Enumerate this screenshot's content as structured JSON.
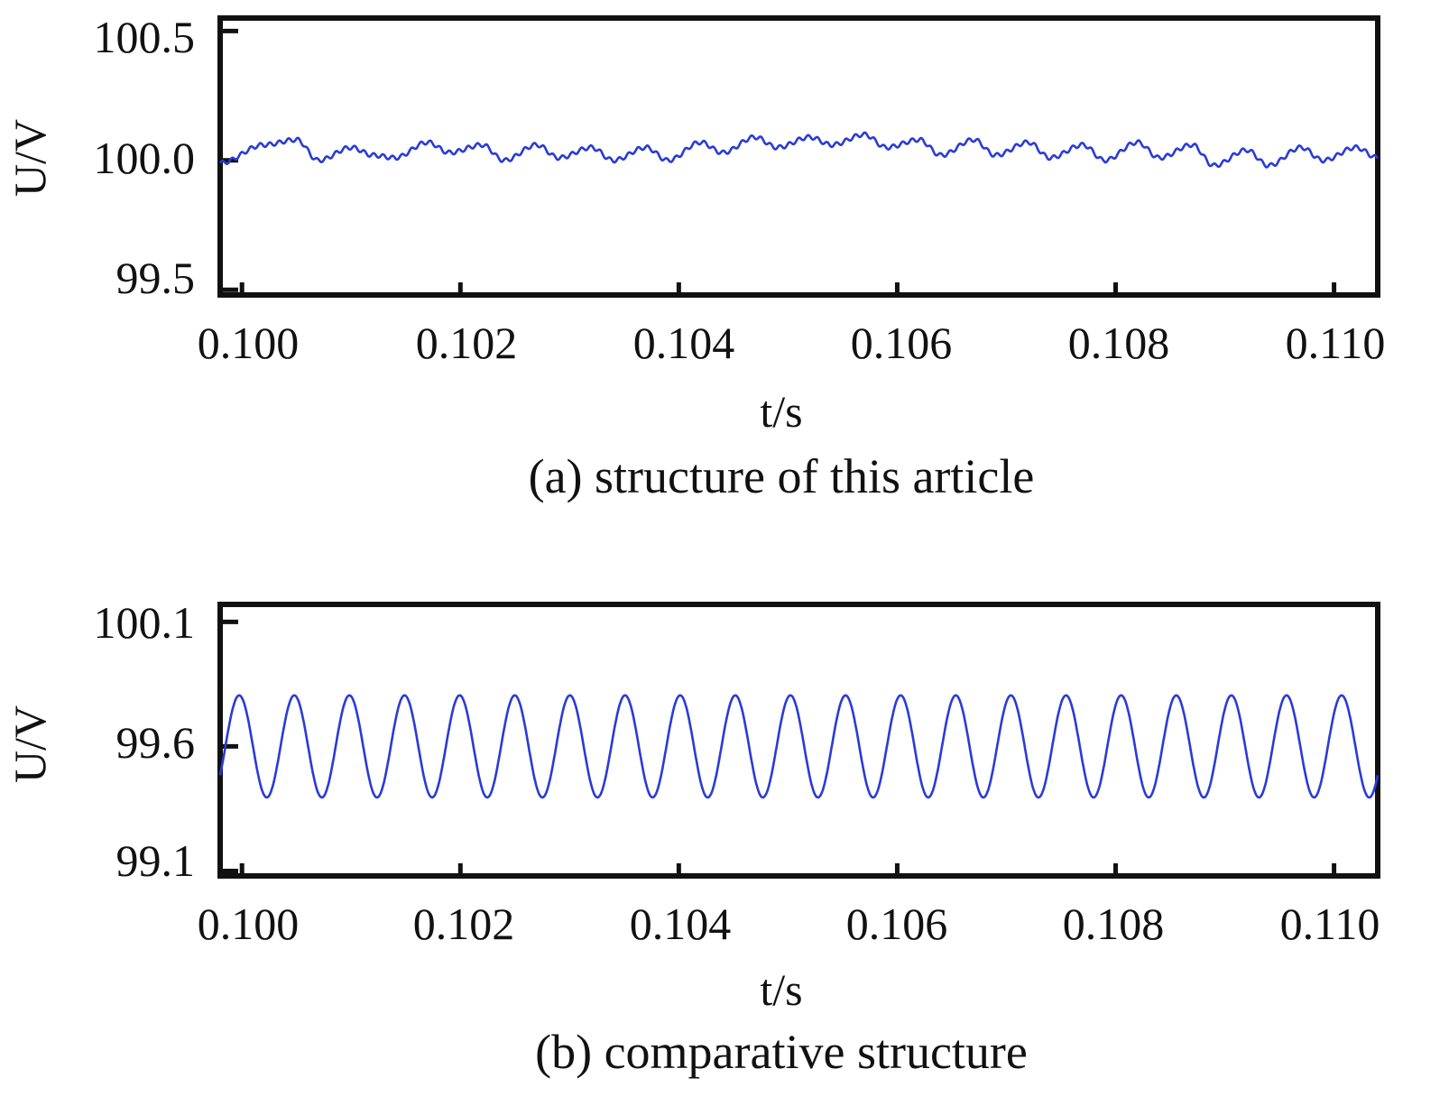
{
  "chart_data": [
    {
      "type": "line",
      "caption": "(a) structure of this article",
      "ylabel": "U/V",
      "xlabel": "t/s",
      "xlim": [
        0.0998,
        0.1104
      ],
      "ylim": [
        99.48,
        100.55
      ],
      "xticks": [
        0.1,
        0.102,
        0.104,
        0.106,
        0.108,
        0.11
      ],
      "xtick_labels": [
        "0.100",
        "0.102",
        "0.104",
        "0.106",
        "0.108",
        "0.110"
      ],
      "yticks": [
        99.5,
        100.0,
        100.5
      ],
      "ytick_labels": [
        "99.5",
        "100.0",
        "100.5"
      ],
      "grid": false,
      "series": [
        {
          "color": "#2a3bd6",
          "x": [
            0.0998,
            0.1002,
            0.1005,
            0.1007,
            0.101,
            0.1012,
            0.1014,
            0.1017,
            0.1019,
            0.1022,
            0.1024,
            0.1027,
            0.1029,
            0.1032,
            0.1034,
            0.1037,
            0.1039,
            0.1042,
            0.1044,
            0.1047,
            0.1049,
            0.1052,
            0.1054,
            0.1057,
            0.1059,
            0.1062,
            0.1064,
            0.1067,
            0.1069,
            0.1072,
            0.1074,
            0.1077,
            0.1079,
            0.1082,
            0.1084,
            0.1087,
            0.1089,
            0.1092,
            0.1094,
            0.1097,
            0.1099,
            0.1102,
            0.1104
          ],
          "y": [
            99.99,
            100.06,
            100.08,
            100.0,
            100.05,
            100.02,
            100.01,
            100.07,
            100.03,
            100.06,
            100.0,
            100.06,
            100.01,
            100.05,
            100.0,
            100.05,
            100.0,
            100.07,
            100.03,
            100.09,
            100.05,
            100.09,
            100.06,
            100.1,
            100.05,
            100.08,
            100.02,
            100.08,
            100.02,
            100.07,
            100.01,
            100.06,
            100.0,
            100.07,
            100.01,
            100.06,
            99.98,
            100.04,
            99.98,
            100.05,
            100.0,
            100.05,
            100.01
          ]
        }
      ]
    },
    {
      "type": "line",
      "caption": "(b) comparative structure",
      "ylabel": "U/V",
      "xlabel": "t/s",
      "xlim": [
        0.0998,
        0.1104
      ],
      "ylim": [
        99.08,
        100.17
      ],
      "xticks": [
        0.1,
        0.102,
        0.104,
        0.106,
        0.108,
        0.11
      ],
      "xtick_labels": [
        "0.100",
        "0.102",
        "0.104",
        "0.106",
        "0.108",
        "0.110"
      ],
      "yticks": [
        99.1,
        99.6,
        100.1
      ],
      "ytick_labels": [
        "99.1",
        "99.6",
        "100.1"
      ],
      "grid": false,
      "series": [
        {
          "color": "#2a3bd6",
          "oscillation": {
            "center": 99.6,
            "amplitude": 0.205,
            "cycles": 21
          },
          "x": [
            0.0998,
            0.1104
          ],
          "y": [
            99.5,
            99.5
          ]
        }
      ]
    }
  ]
}
